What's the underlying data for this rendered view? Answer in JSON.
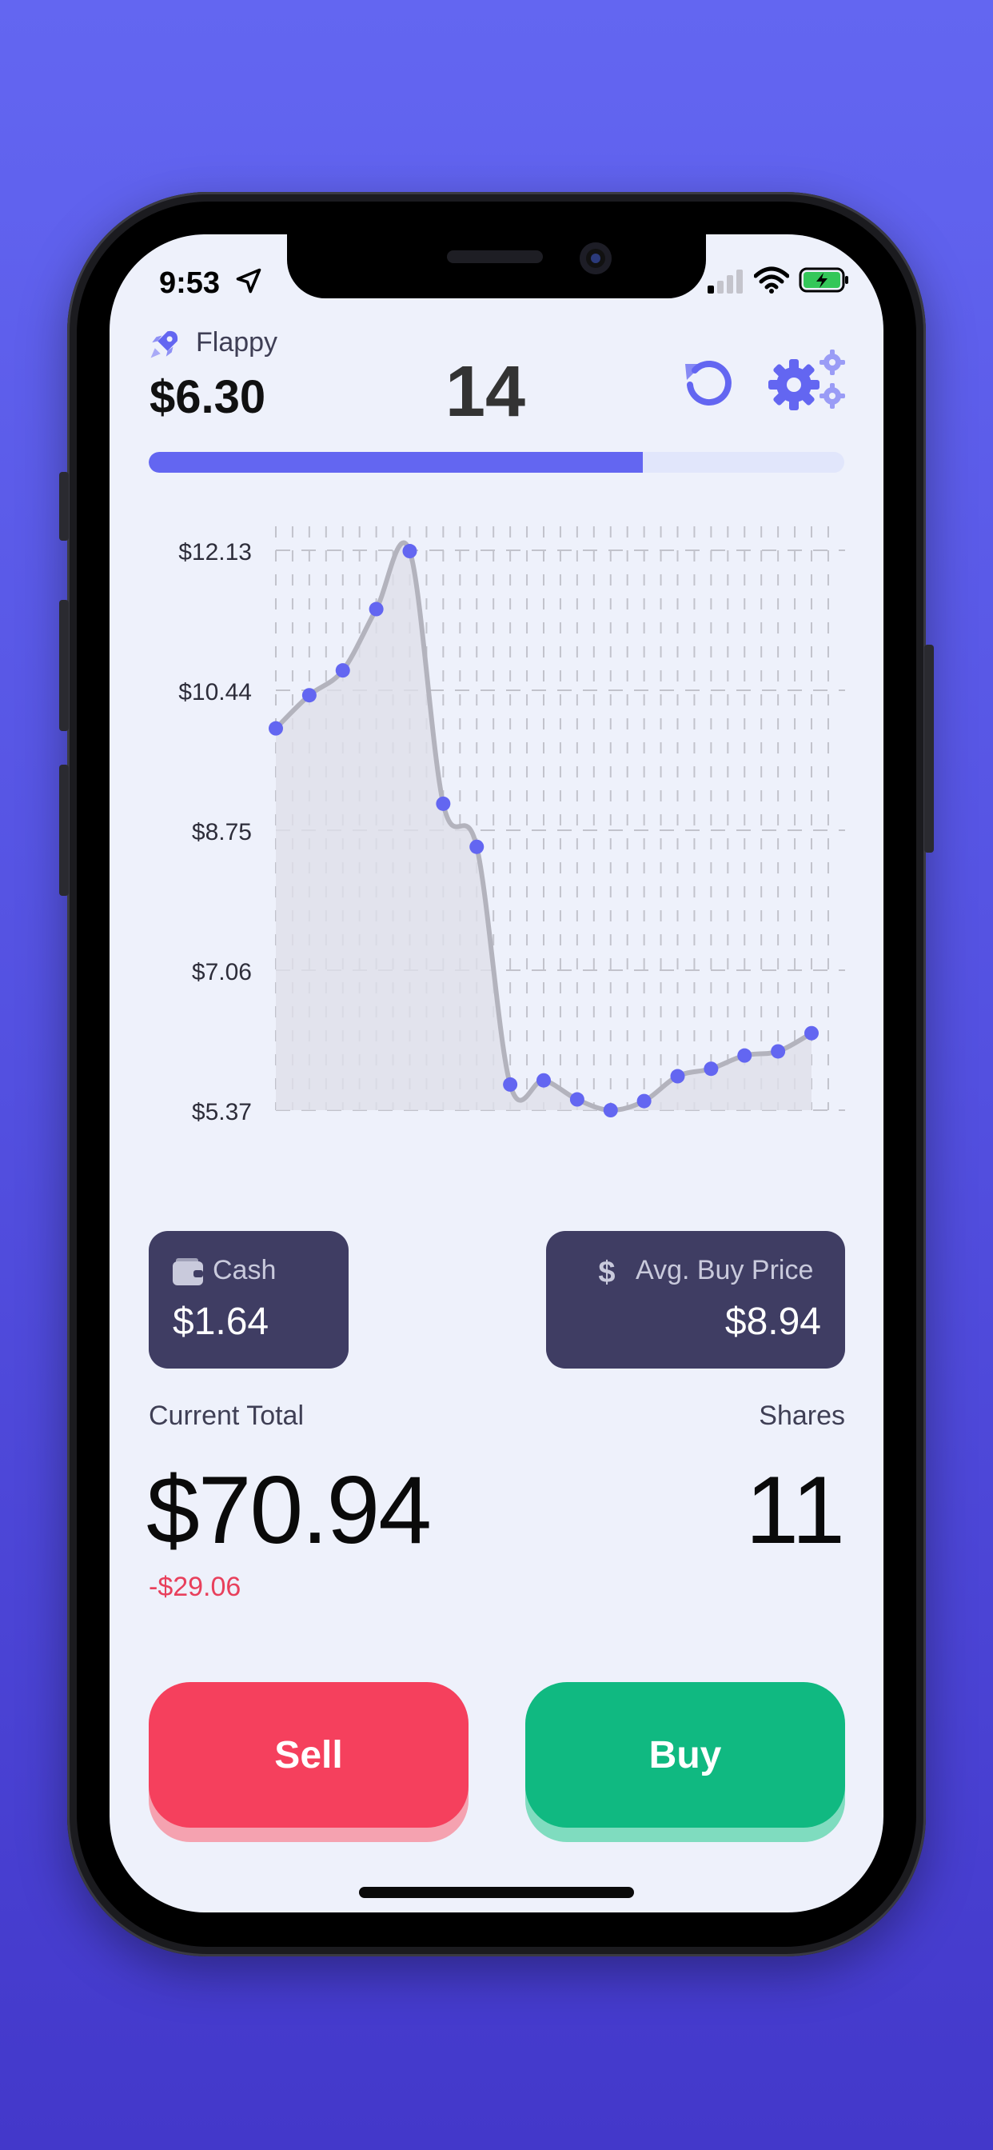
{
  "status_bar": {
    "time": "9:53"
  },
  "header": {
    "app_name": "Flappy",
    "price": "$6.30",
    "counter": "14",
    "progress": 0.71
  },
  "chart_data": {
    "type": "line",
    "y_ticks": [
      "$12.13",
      "$10.44",
      "$8.75",
      "$7.06",
      "$5.37"
    ],
    "ylim": [
      5.37,
      12.13
    ],
    "values": [
      9.98,
      10.38,
      10.68,
      11.42,
      12.12,
      9.07,
      8.55,
      5.68,
      5.73,
      5.5,
      5.37,
      5.48,
      5.78,
      5.87,
      6.03,
      6.08,
      6.3
    ],
    "line_color": "#b3b3bd",
    "point_color": "#6366F1",
    "area_color": "#dfe0ea",
    "grid": true
  },
  "cards": {
    "cash": {
      "label": "Cash",
      "value": "$1.64"
    },
    "avg": {
      "label": "Avg. Buy Price",
      "value": "$8.94"
    }
  },
  "summary": {
    "current_total_label": "Current Total",
    "current_total": "$70.94",
    "change": "-$29.06",
    "shares_label": "Shares",
    "shares": "11"
  },
  "actions": {
    "sell": "Sell",
    "buy": "Buy"
  },
  "colors": {
    "accent": "#6366F1",
    "sell": "#f5405d",
    "buy": "#10b981",
    "card_bg": "#3f3d63",
    "negative": "#e8405c"
  }
}
